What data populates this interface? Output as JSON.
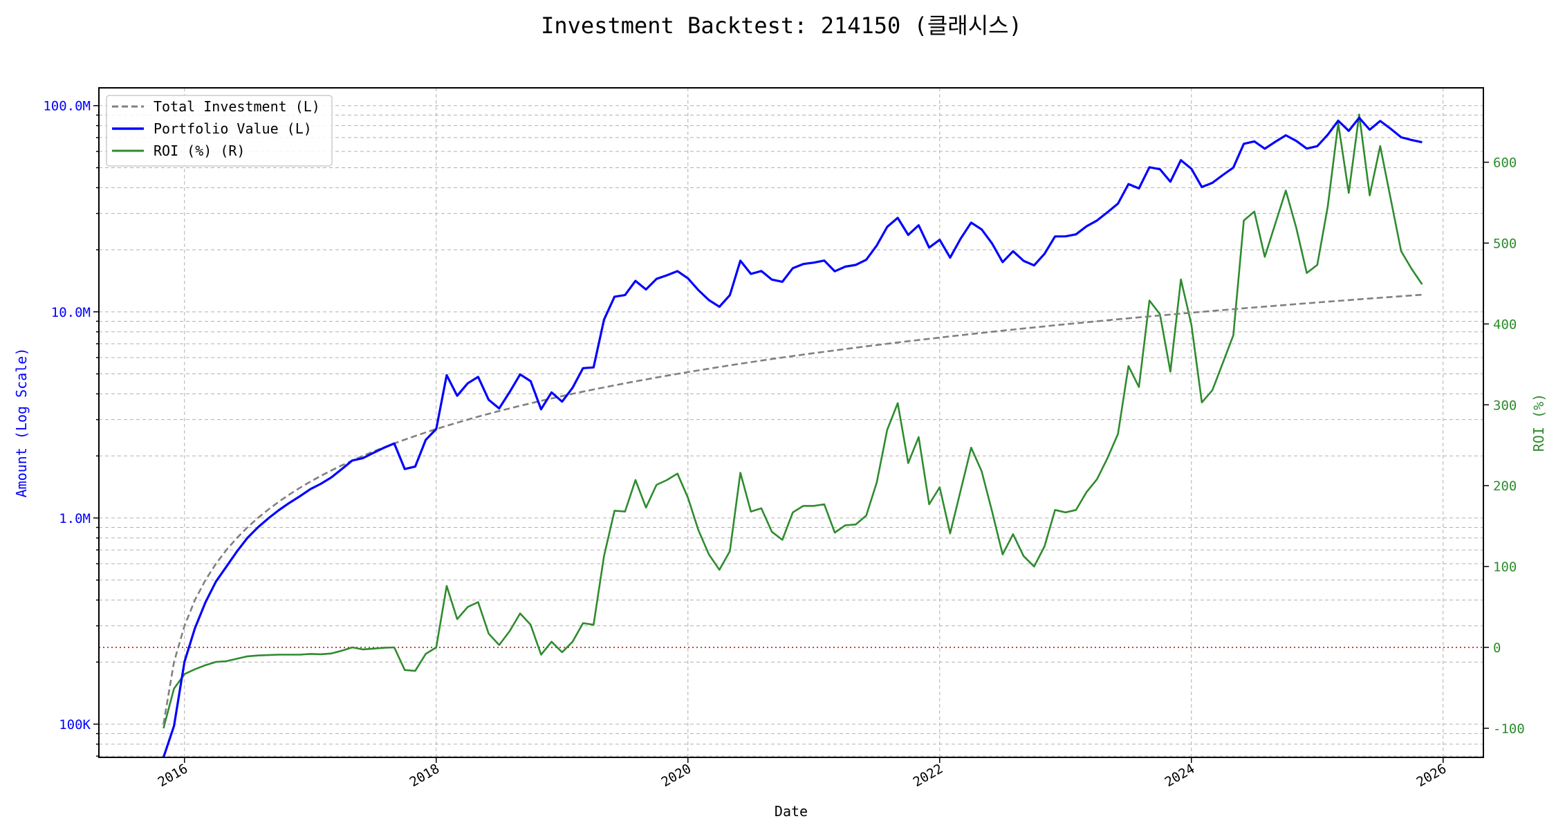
{
  "chart_data": {
    "type": "line",
    "title": "Investment Backtest: 214150 (클래시스)",
    "xlabel": "Date",
    "ylabel_left": "Amount (Log Scale)",
    "ylabel_right": "ROI (%)",
    "x_start": "2015-11",
    "x_frequency": "monthly",
    "xlim": [
      2015.32,
      2026.32
    ],
    "ylim_left": [
      69000,
      122000000
    ],
    "yscale_left": "log",
    "ylim_right": [
      -136,
      692
    ],
    "x_ticks": [
      "2016",
      "2018",
      "2020",
      "2022",
      "2024",
      "2026"
    ],
    "x_tick_values": [
      2016,
      2018,
      2020,
      2022,
      2024,
      2026
    ],
    "y_left_ticks": [
      "100K",
      "1.0M",
      "10.0M",
      "100.0M"
    ],
    "y_left_tick_values": [
      100000,
      1000000,
      10000000,
      100000000
    ],
    "y_right_ticks": [
      "-100",
      "0",
      "100",
      "200",
      "300",
      "400",
      "500",
      "600"
    ],
    "y_right_tick_values": [
      -100,
      0,
      100,
      200,
      300,
      400,
      500,
      600
    ],
    "reference_line": {
      "axis": "right",
      "value": 0,
      "style": "dotted",
      "color": "#cc2222"
    },
    "grid": true,
    "legend_position": "top-left",
    "legend": [
      "Total Investment (L)",
      "Portfolio Value (L)",
      "ROI (%) (R)"
    ],
    "colors": {
      "investment": "#808080",
      "portfolio": "#0000ff",
      "roi": "#2e8b2e",
      "left_axis": "#0000ff",
      "right_axis": "#2e8b2e"
    },
    "series": [
      {
        "name": "Total Investment (L)",
        "axis": "left",
        "unit": "KRW",
        "monthly_contribution": 100000,
        "note_values_in_millions": true,
        "values_millions": [
          0.1,
          0.2,
          0.3,
          0.4,
          0.5,
          0.6,
          0.7,
          0.8,
          0.9,
          1.0,
          1.1,
          1.2,
          1.3,
          1.4,
          1.5,
          1.6,
          1.7,
          1.8,
          1.9,
          2.0,
          2.1,
          2.2,
          2.3,
          2.4,
          2.5,
          2.6,
          2.7,
          2.8,
          2.9,
          3.0,
          3.1,
          3.2,
          3.3,
          3.4,
          3.5,
          3.6,
          3.7,
          3.8,
          3.9,
          4.0,
          4.1,
          4.2,
          4.3,
          4.4,
          4.5,
          4.6,
          4.7,
          4.8,
          4.9,
          5.0,
          5.1,
          5.2,
          5.3,
          5.4,
          5.5,
          5.6,
          5.7,
          5.8,
          5.9,
          6.0,
          6.1,
          6.2,
          6.3,
          6.4,
          6.5,
          6.6,
          6.7,
          6.8,
          6.9,
          7.0,
          7.1,
          7.2,
          7.3,
          7.4,
          7.5,
          7.6,
          7.7,
          7.8,
          7.9,
          8.0,
          8.1,
          8.2,
          8.3,
          8.4,
          8.5,
          8.6,
          8.7,
          8.8,
          8.9,
          9.0,
          9.1,
          9.2,
          9.3,
          9.4,
          9.5,
          9.6,
          9.7,
          9.8,
          9.9,
          10.0,
          10.1,
          10.2,
          10.3,
          10.4,
          10.5,
          10.6,
          10.7,
          10.8,
          10.9,
          11.0,
          11.1,
          11.2,
          11.3,
          11.4,
          11.5,
          11.6,
          11.7,
          11.8,
          11.9,
          12.0,
          12.1
        ]
      },
      {
        "name": "Portfolio Value (L)",
        "axis": "left",
        "unit": "KRW",
        "values_millions": [
          0,
          0.098,
          0.201,
          0.292,
          0.39,
          0.492,
          0.581,
          0.688,
          0.801,
          0.9,
          0.996,
          1.092,
          1.183,
          1.274,
          1.38,
          1.464,
          1.573,
          1.728,
          1.9,
          1.95,
          2.069,
          2.189,
          2.3,
          1.728,
          1.775,
          2.392,
          2.7,
          4.928,
          3.915,
          4.5,
          4.836,
          3.744,
          3.399,
          4.08,
          4.97,
          4.608,
          3.367,
          4.066,
          3.666,
          4.28,
          5.33,
          5.376,
          9.159,
          11.836,
          12.06,
          14.122,
          12.831,
          14.448,
          15.043,
          15.75,
          14.535,
          12.74,
          11.395,
          10.584,
          12.045,
          17.696,
          15.276,
          15.776,
          14.337,
          13.98,
          16.287,
          17.05,
          17.325,
          17.728,
          15.73,
          16.566,
          16.884,
          17.884,
          20.976,
          25.83,
          28.542,
          23.616,
          26.28,
          20.498,
          22.35,
          18.316,
          22.638,
          27.066,
          25.122,
          21.44,
          17.415,
          19.68,
          17.679,
          16.8,
          19.125,
          23.22,
          23.229,
          23.76,
          25.988,
          27.72,
          30.394,
          33.488,
          41.664,
          39.668,
          50.255,
          49.152,
          42.777,
          54.39,
          49.401,
          40.3,
          42.218,
          46.104,
          50.058,
          65.312,
          67.095,
          61.798,
          66.768,
          71.82,
          67.471,
          61.93,
          63.603,
          72.24,
          84.524,
          75.468,
          87.285,
          76.444,
          84.24,
          77.29,
          70.21,
          68.16,
          66.429
        ]
      },
      {
        "name": "ROI (%) (R)",
        "axis": "right",
        "unit": "%",
        "values": [
          -100,
          -51,
          -33,
          -27,
          -22,
          -18,
          -17,
          -14,
          -11,
          -10,
          -9.5,
          -9,
          -9,
          -9,
          -8,
          -8.5,
          -7.5,
          -4,
          0,
          -2.5,
          -1.5,
          -0.5,
          0,
          -28,
          -29,
          -8,
          0,
          76,
          35,
          50,
          56,
          17,
          3,
          20,
          42,
          28,
          -9,
          7,
          -6,
          7,
          30,
          28,
          113,
          169,
          168,
          207,
          173,
          201,
          207,
          215,
          185,
          145,
          115,
          96,
          119,
          216,
          168,
          172,
          143,
          133,
          167,
          175,
          175,
          177,
          142,
          151,
          152,
          163,
          204,
          269,
          302,
          228,
          260,
          177,
          198,
          141,
          194,
          247,
          218,
          168,
          115,
          140,
          113,
          100,
          125,
          170,
          167,
          170,
          192,
          208,
          234,
          264,
          348,
          322,
          429,
          412,
          341,
          455,
          399,
          303,
          318,
          352,
          386,
          528,
          539,
          483,
          524,
          565,
          519,
          463,
          473,
          545,
          648,
          562,
          659,
          559,
          620,
          555,
          490,
          468,
          449
        ]
      }
    ]
  }
}
